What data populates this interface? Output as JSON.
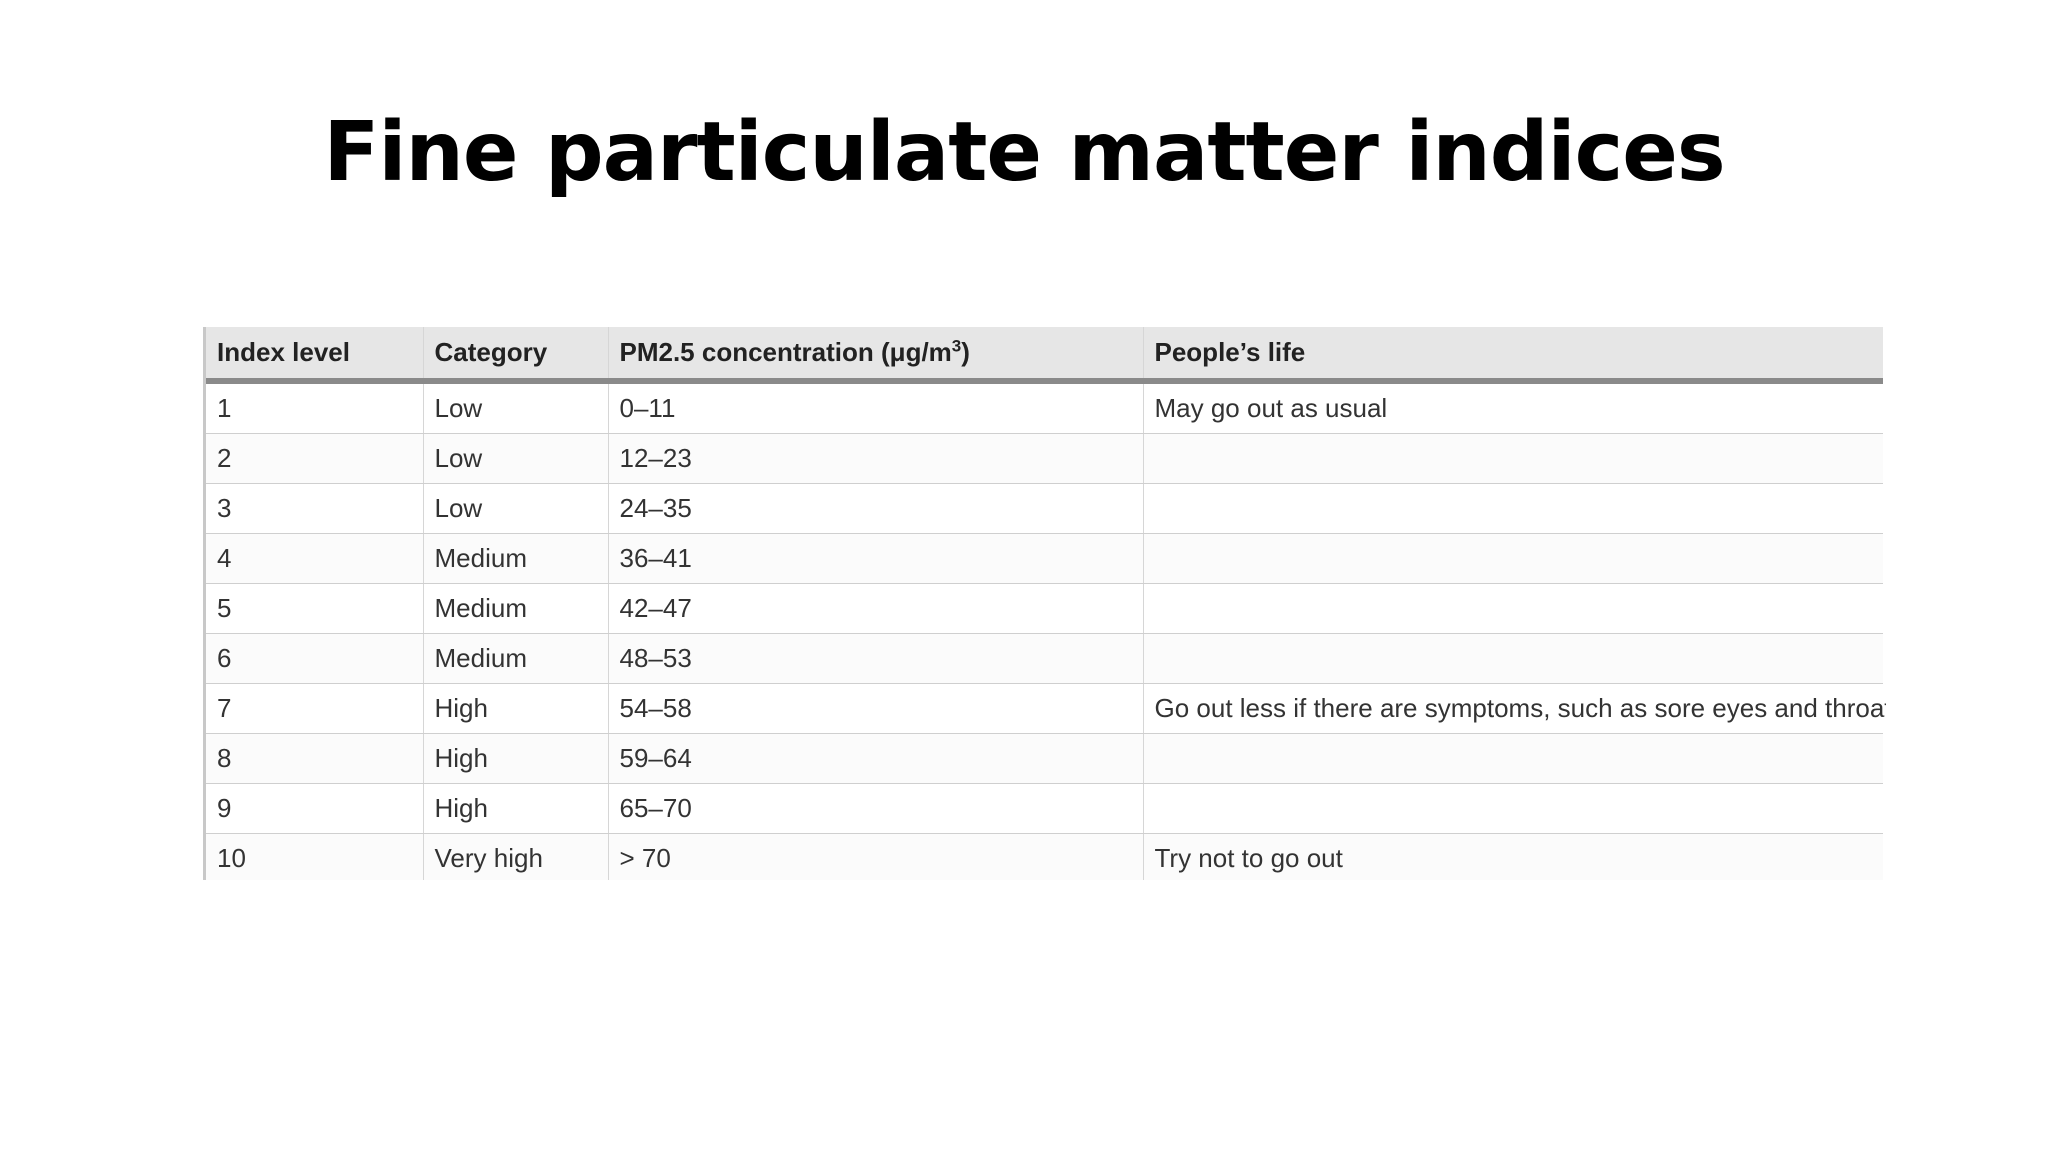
{
  "slide": {
    "title": "Fine particulate matter indices"
  },
  "table": {
    "headers": {
      "index_level": "Index level",
      "category": "Category",
      "concentration_prefix": "PM2.5 concentration (μg/m",
      "concentration_exponent": "3",
      "concentration_suffix": ")",
      "peoples_life": "People’s life"
    },
    "rows": [
      {
        "index": "1",
        "category": "Low",
        "range": "0–11",
        "life": "May go out as usual"
      },
      {
        "index": "2",
        "category": "Low",
        "range": "12–23",
        "life": ""
      },
      {
        "index": "3",
        "category": "Low",
        "range": "24–35",
        "life": ""
      },
      {
        "index": "4",
        "category": "Medium",
        "range": "36–41",
        "life": ""
      },
      {
        "index": "5",
        "category": "Medium",
        "range": "42–47",
        "life": ""
      },
      {
        "index": "6",
        "category": "Medium",
        "range": "48–53",
        "life": ""
      },
      {
        "index": "7",
        "category": "High",
        "range": "54–58",
        "life": "Go out less if there are symptoms, such as sore eyes and throat"
      },
      {
        "index": "8",
        "category": "High",
        "range": "59–64",
        "life": ""
      },
      {
        "index": "9",
        "category": "High",
        "range": "65–70",
        "life": ""
      },
      {
        "index": "10",
        "category": "Very high",
        "range": " > 70",
        "life": "Try not to go out"
      }
    ]
  }
}
